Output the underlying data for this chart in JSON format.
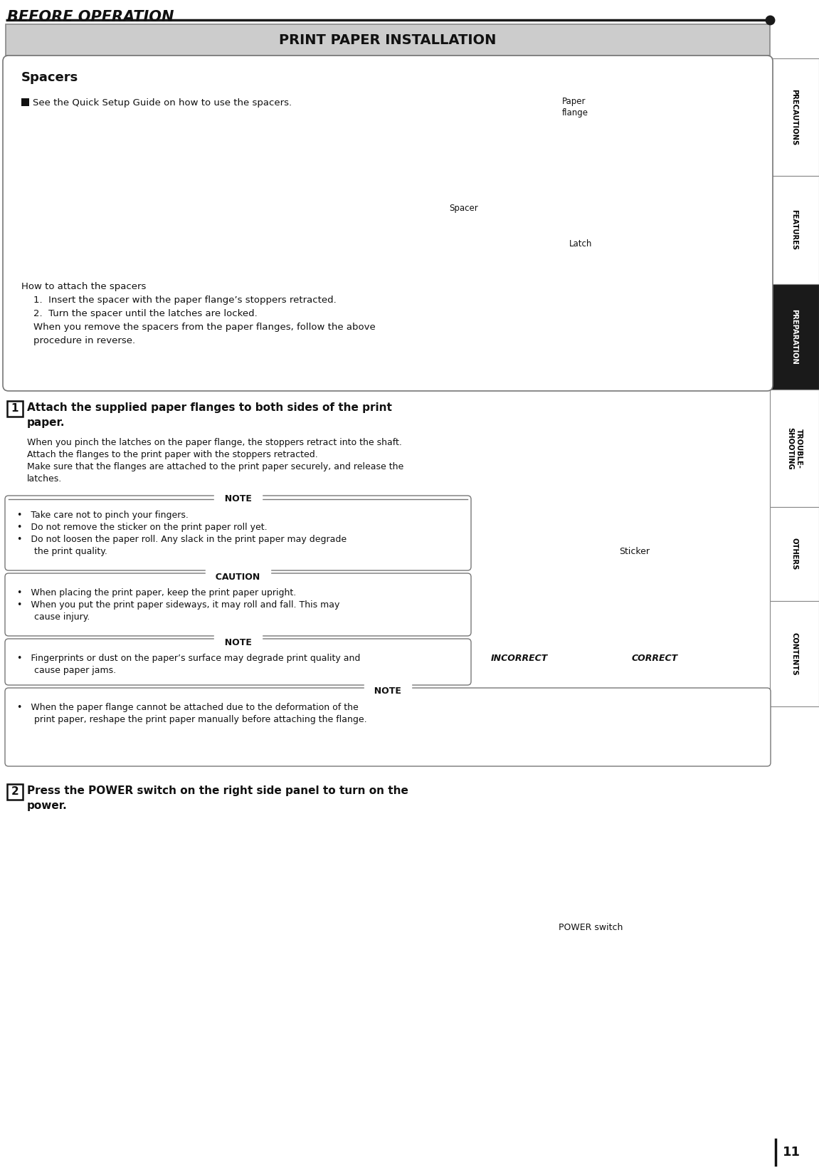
{
  "page_bg": "#ffffff",
  "title_bar_bg": "#cccccc",
  "title_bar_text": "PRINT PAPER INSTALLATION",
  "header_text": "BEFORE OPERATION",
  "page_number": "11",
  "sidebar_items": [
    {
      "label": "PRECAUTIONS",
      "bg": "#ffffff",
      "text_color": "#000000"
    },
    {
      "label": "FEATURES",
      "bg": "#ffffff",
      "text_color": "#000000"
    },
    {
      "label": "PREPARATION",
      "bg": "#1a1a1a",
      "text_color": "#ffffff"
    },
    {
      "label": "TROUBLE-\nSHOOTING",
      "bg": "#ffffff",
      "text_color": "#000000"
    },
    {
      "label": "OTHERS",
      "bg": "#ffffff",
      "text_color": "#000000"
    },
    {
      "label": "CONTENTS",
      "bg": "#ffffff",
      "text_color": "#000000"
    }
  ],
  "spacers_title": "Spacers",
  "spacers_bullet": "See the Quick Setup Guide on how to use the spacers.",
  "spacers_body": [
    "How to attach the spacers",
    "    1.  Insert the spacer with the paper flange’s stoppers retracted.",
    "    2.  Turn the spacer until the latches are locked.",
    "    When you remove the spacers from the paper flanges, follow the above",
    "    procedure in reverse."
  ],
  "spacer_label": "Spacer",
  "latch_label": "Latch",
  "paper_flange_label": "Paper\nflange",
  "step1_heading": "Attach the supplied paper flanges to both sides of the print\npaper.",
  "step1_body_lines": [
    "When you pinch the latches on the paper flange, the stoppers retract into the shaft.",
    "Attach the flanges to the print paper with the stoppers retracted.",
    "Make sure that the flanges are attached to the print paper securely, and release the",
    "latches."
  ],
  "note1_label": "NOTE",
  "note1_lines": [
    "•   Take care not to pinch your fingers.",
    "•   Do not remove the sticker on the print paper roll yet.",
    "•   Do not loosen the paper roll. Any slack in the print paper may degrade",
    "      the print quality."
  ],
  "caution_label": "CAUTION",
  "caution_lines": [
    "•   When placing the print paper, keep the print paper upright.",
    "•   When you put the print paper sideways, it may roll and fall. This may",
    "      cause injury."
  ],
  "note2_label": "NOTE",
  "note2_lines": [
    "•   Fingerprints or dust on the paper’s surface may degrade print quality and",
    "      cause paper jams."
  ],
  "note3_label": "NOTE",
  "note3_lines": [
    "•   When the paper flange cannot be attached due to the deformation of the",
    "      print paper, reshape the print paper manually before attaching the flange."
  ],
  "sticker_label": "Sticker",
  "incorrect_label": "INCORRECT",
  "correct_label": "CORRECT",
  "step2_heading": "Press the POWER switch on the right side panel to turn on the\npower.",
  "power_switch_label": "POWER switch"
}
